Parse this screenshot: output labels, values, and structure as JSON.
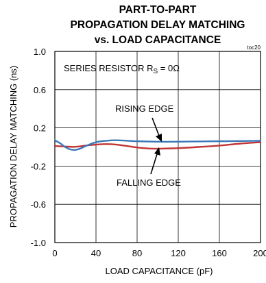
{
  "chart_data": {
    "type": "line",
    "title_lines": [
      "PART-TO-PART",
      "PROPAGATION DELAY MATCHING",
      "vs. LOAD CAPACITANCE"
    ],
    "figure_id": "toc20",
    "xlabel": "LOAD CAPACITANCE (pF)",
    "ylabel": "PROPAGATION DELAY MATCHING (ns)",
    "xlim": [
      0,
      200
    ],
    "ylim": [
      -1.0,
      1.0
    ],
    "xticks": [
      0,
      40,
      80,
      120,
      160,
      200
    ],
    "xtick_labels": [
      "0",
      "40",
      "80",
      "120",
      "160",
      "200"
    ],
    "yticks": [
      1.0,
      0.6,
      0.2,
      -0.2,
      -0.6,
      -1.0
    ],
    "ytick_labels": [
      "1.0",
      "0.6",
      "0.2",
      "-0.2",
      "-0.6",
      "-1.0"
    ],
    "grid": true,
    "annotations": {
      "condition": {
        "prefix": "SERIES RESISTOR R",
        "sub": "S",
        "suffix": " = 0Ω"
      },
      "rising": "RISING EDGE",
      "falling": "FALLING EDGE"
    },
    "series": [
      {
        "name": "RISING EDGE",
        "color": "#3a78b8",
        "x": [
          0,
          5,
          10,
          15,
          20,
          25,
          30,
          40,
          50,
          60,
          80,
          100,
          120,
          140,
          160,
          180,
          200
        ],
        "y": [
          0.07,
          0.04,
          0.0,
          -0.025,
          -0.03,
          -0.015,
          0.01,
          0.05,
          0.065,
          0.07,
          0.06,
          0.055,
          0.055,
          0.058,
          0.06,
          0.062,
          0.065
        ]
      },
      {
        "name": "FALLING EDGE",
        "color": "#c03434",
        "x": [
          0,
          10,
          20,
          30,
          40,
          50,
          60,
          70,
          80,
          90,
          100,
          120,
          140,
          160,
          180,
          200
        ],
        "y": [
          0.01,
          0.005,
          0.002,
          0.015,
          0.025,
          0.03,
          0.025,
          0.01,
          -0.005,
          -0.015,
          -0.018,
          -0.012,
          0.0,
          0.015,
          0.035,
          0.05
        ]
      }
    ]
  }
}
